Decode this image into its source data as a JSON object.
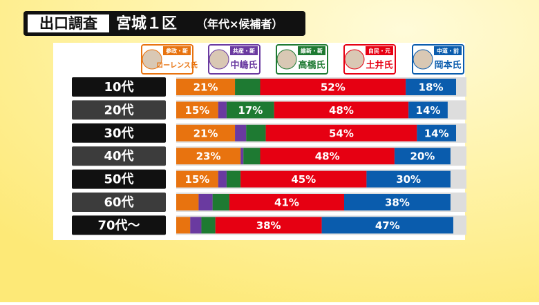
{
  "chart_data": {
    "type": "bar",
    "orientation": "horizontal",
    "stacked": true,
    "title_tag": "出口調査",
    "title": "宮城１区",
    "subtitle": "（年代×候補者）",
    "categories": [
      "10代",
      "20代",
      "30代",
      "40代",
      "50代",
      "60代",
      "70代～"
    ],
    "xlim": [
      0,
      100
    ],
    "series": [
      {
        "name": "ローレンス氏",
        "party": "参政・新",
        "color": "#e8730f",
        "values": [
          21,
          15,
          21,
          23,
          15,
          8,
          5
        ],
        "value_labels": [
          "21%",
          "15%",
          "21%",
          "23%",
          "15%",
          null,
          null
        ]
      },
      {
        "name": "中嶋氏",
        "party": "共産・新",
        "color": "#6a3aa0",
        "values": [
          0,
          3,
          4,
          1,
          3,
          5,
          4
        ]
      },
      {
        "name": "高橋氏",
        "party": "維新・新",
        "color": "#1e7a32",
        "values": [
          9,
          17,
          7,
          6,
          5,
          6,
          5
        ],
        "value_labels": [
          null,
          "17%",
          null,
          null,
          null,
          null,
          null
        ]
      },
      {
        "name": "土井氏",
        "party": "自民・元",
        "color": "#e60012",
        "values": [
          52,
          48,
          54,
          48,
          45,
          41,
          38
        ],
        "value_labels": [
          "52%",
          "48%",
          "54%",
          "48%",
          "45%",
          "41%",
          "38%"
        ]
      },
      {
        "name": "岡本氏",
        "party": "中道・前",
        "color": "#0a5cad",
        "values": [
          18,
          14,
          14,
          20,
          30,
          38,
          47
        ],
        "value_labels": [
          "18%",
          "14%",
          "14%",
          "20%",
          "30%",
          "38%",
          "47%"
        ]
      }
    ]
  }
}
